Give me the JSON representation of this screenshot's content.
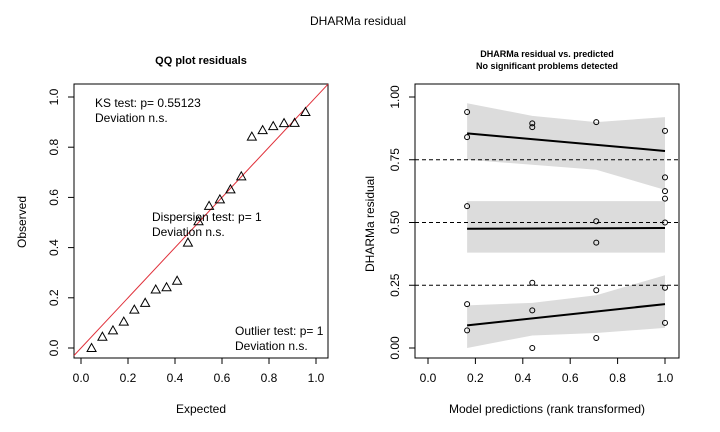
{
  "title": "DHARMa residual",
  "chart_data": [
    {
      "type": "scatter",
      "title": "QQ plot residuals",
      "xlabel": "Expected",
      "ylabel": "Observed",
      "xlim": [
        0,
        1
      ],
      "ylim": [
        0,
        1
      ],
      "xticks": [
        "0.0",
        "0.2",
        "0.4",
        "0.6",
        "0.8",
        "1.0"
      ],
      "yticks": [
        "0.0",
        "0.2",
        "0.4",
        "0.6",
        "0.8",
        "1.0"
      ],
      "tick_values": [
        0,
        0.2,
        0.4,
        0.6,
        0.8,
        1.0
      ],
      "marker": "triangle",
      "reference_line": {
        "color": "#e0303a"
      },
      "series": [
        {
          "x": [
            0.045,
            0.091,
            0.136,
            0.182,
            0.227,
            0.273,
            0.318,
            0.364,
            0.409,
            0.455,
            0.5,
            0.545,
            0.591,
            0.636,
            0.682,
            0.727,
            0.773,
            0.818,
            0.864,
            0.909,
            0.955
          ],
          "y": [
            0.0,
            0.045,
            0.07,
            0.105,
            0.153,
            0.18,
            0.233,
            0.242,
            0.268,
            0.42,
            0.505,
            0.566,
            0.592,
            0.632,
            0.684,
            0.842,
            0.868,
            0.884,
            0.896,
            0.897,
            0.94
          ]
        }
      ],
      "annotations": [
        {
          "line1": "KS test: p= 0.55123",
          "line2": "Deviation  n.s."
        },
        {
          "line1": "Dispersion test: p= 1",
          "line2": "Deviation  n.s."
        },
        {
          "line1": "Outlier test: p= 1",
          "line2": "Deviation  n.s."
        }
      ]
    },
    {
      "type": "scatter",
      "title": "DHARMa residual vs. predicted",
      "subtitle": "No significant problems detected",
      "xlabel": "Model predictions (rank transformed)",
      "ylabel": "DHARMa residual",
      "xlim": [
        0,
        1
      ],
      "ylim": [
        0,
        1
      ],
      "xticks": [
        "0.0",
        "0.2",
        "0.4",
        "0.6",
        "0.8",
        "1.0"
      ],
      "xtick_values": [
        0,
        0.2,
        0.4,
        0.6,
        0.8,
        1.0
      ],
      "yticks": [
        "0.00",
        "0.25",
        "0.50",
        "0.75",
        "1.00"
      ],
      "ytick_values": [
        0,
        0.25,
        0.5,
        0.75,
        1.0
      ],
      "hlines": [
        0.25,
        0.5,
        0.75
      ],
      "points": {
        "x": [
          0.165,
          0.165,
          0.165,
          0.165,
          0.165,
          0.44,
          0.44,
          0.44,
          0.44,
          0.44,
          0.71,
          0.71,
          0.71,
          0.71,
          0.71,
          1.0,
          1.0,
          1.0,
          1.0,
          1.0,
          1.0,
          1.0
        ],
        "y": [
          0.94,
          0.84,
          0.565,
          0.175,
          0.07,
          0.895,
          0.88,
          0.26,
          0.15,
          0.0,
          0.9,
          0.505,
          0.42,
          0.23,
          0.04,
          0.865,
          0.68,
          0.625,
          0.595,
          0.24,
          0.1,
          0.5
        ]
      },
      "quantile_fits": [
        {
          "quantile": 0.25,
          "line": [
            [
              0.165,
              0.09
            ],
            [
              1.0,
              0.175
            ]
          ],
          "band_lower": [
            [
              0.165,
              0.0
            ],
            [
              0.44,
              0.05
            ],
            [
              0.71,
              0.06
            ],
            [
              1.0,
              0.08
            ]
          ],
          "band_upper": [
            [
              0.165,
              0.17
            ],
            [
              0.44,
              0.18
            ],
            [
              0.71,
              0.21
            ],
            [
              1.0,
              0.29
            ]
          ]
        },
        {
          "quantile": 0.5,
          "line": [
            [
              0.165,
              0.475
            ],
            [
              1.0,
              0.478
            ]
          ],
          "band_lower": [
            [
              0.165,
              0.38
            ],
            [
              0.44,
              0.38
            ],
            [
              0.71,
              0.38
            ],
            [
              1.0,
              0.38
            ]
          ],
          "band_upper": [
            [
              0.165,
              0.585
            ],
            [
              0.44,
              0.585
            ],
            [
              0.71,
              0.585
            ],
            [
              1.0,
              0.585
            ]
          ]
        },
        {
          "quantile": 0.75,
          "line": [
            [
              0.165,
              0.855
            ],
            [
              1.0,
              0.785
            ]
          ],
          "band_lower": [
            [
              0.165,
              0.75
            ],
            [
              0.44,
              0.73
            ],
            [
              0.71,
              0.71
            ],
            [
              1.0,
              0.63
            ]
          ],
          "band_upper": [
            [
              0.165,
              0.975
            ],
            [
              0.44,
              0.925
            ],
            [
              0.71,
              0.9
            ],
            [
              1.0,
              0.92
            ]
          ]
        }
      ],
      "band_color": "#dcdcdc"
    }
  ]
}
